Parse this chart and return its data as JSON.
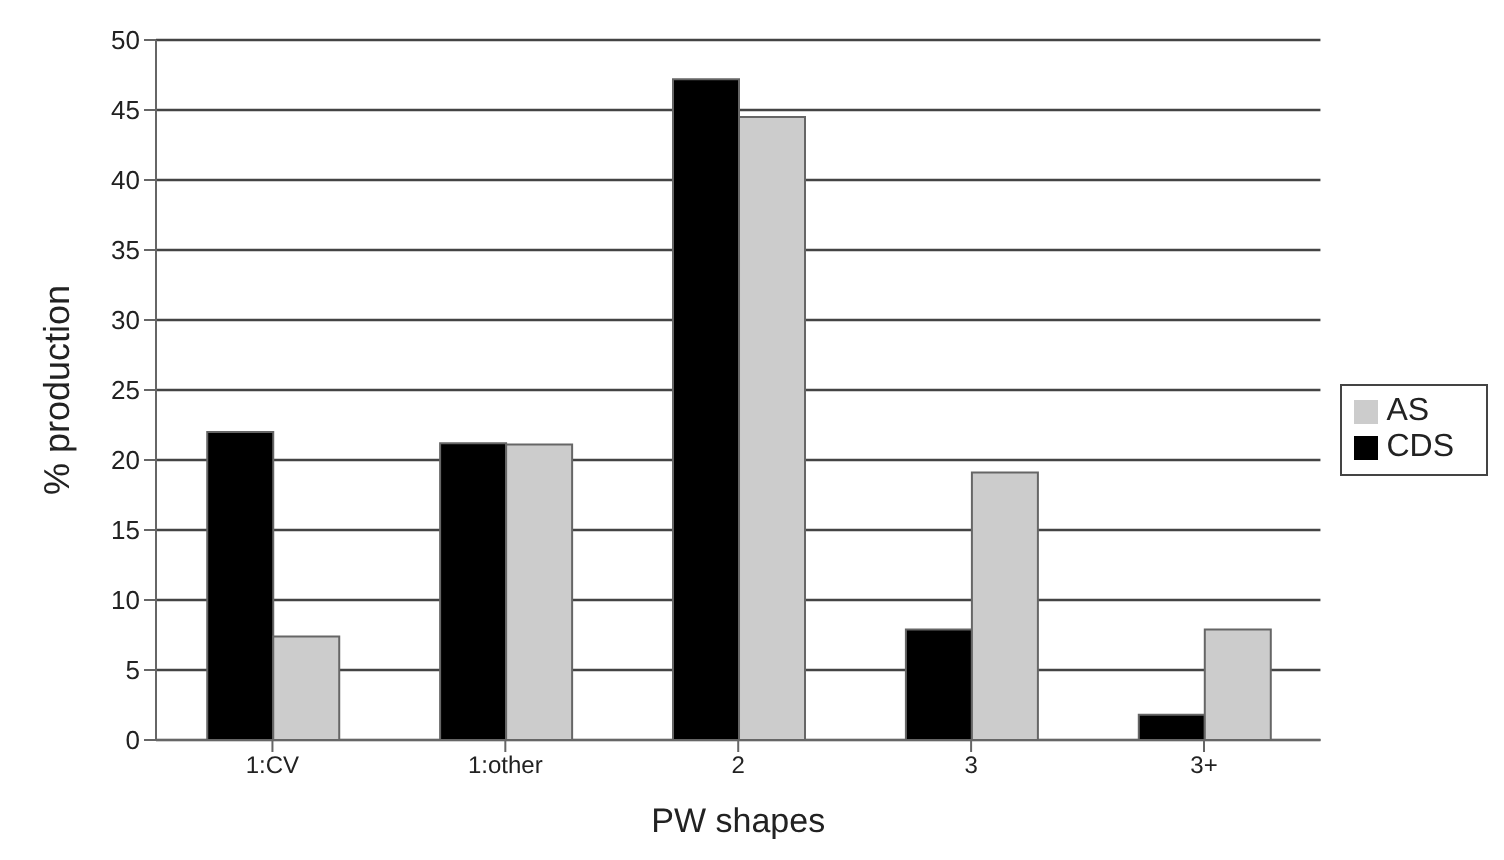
{
  "chart_data": {
    "type": "bar",
    "xlabel": "PW shapes",
    "ylabel": "% production",
    "categories": [
      "1:CV",
      "1:other",
      "2",
      "3",
      "3+"
    ],
    "series": [
      {
        "name": "CDS",
        "color": "#000000",
        "values": [
          22,
          21.2,
          47.2,
          7.9,
          1.8
        ]
      },
      {
        "name": "AS",
        "color": "#cccccc",
        "values": [
          7.4,
          21.1,
          44.5,
          19.1,
          7.9
        ]
      }
    ],
    "ylim": [
      0,
      50
    ],
    "yticks": [
      0,
      5,
      10,
      15,
      20,
      25,
      30,
      35,
      40,
      45,
      50
    ],
    "grid": "y",
    "legend": "right"
  }
}
